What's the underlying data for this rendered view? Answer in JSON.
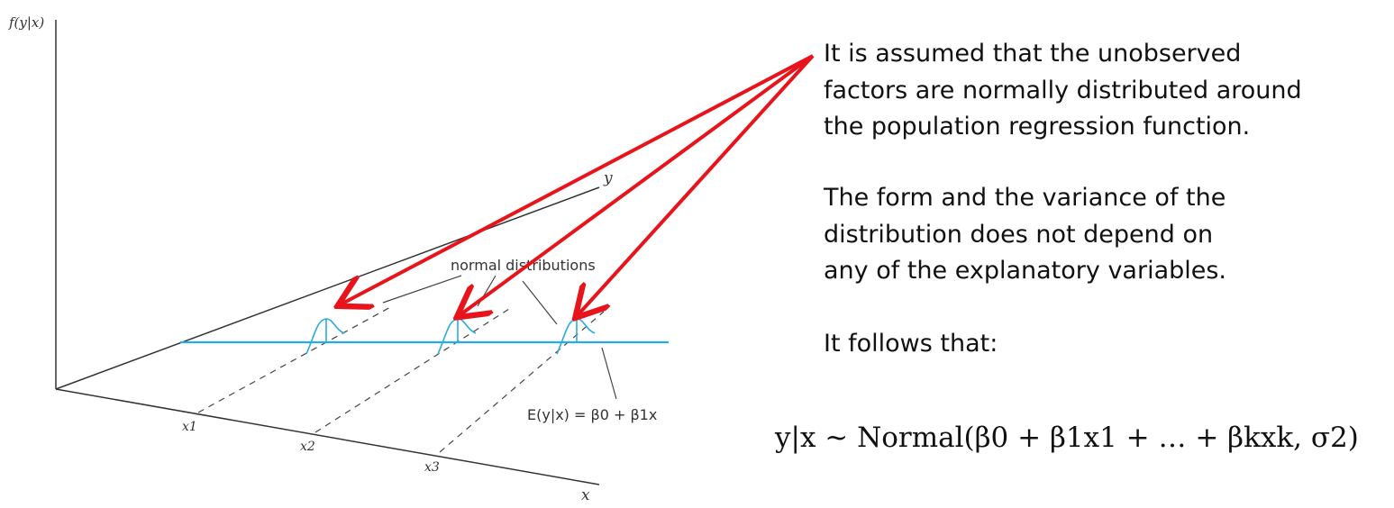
{
  "diagram": {
    "axis_labels": {
      "f_axis": "f(y|x)",
      "y_axis": "y",
      "x_axis": "x"
    },
    "x_ticks": [
      "x1",
      "x2",
      "x3"
    ],
    "callout": "normal distributions",
    "regression_label": "E(y|x) = β0 + β1x",
    "colors": {
      "regression_line": "#29abe2",
      "arrows": "#e8141b",
      "axes": "#333333"
    }
  },
  "notes": {
    "p1": [
      "It is assumed that the unobserved",
      "factors are normally distributed around",
      "the population regression function."
    ],
    "p2": [
      "The form and the variance of the",
      "distribution does not depend on",
      "any of the explanatory variables."
    ],
    "p3": "It follows that:"
  },
  "formula": "y|x ~ Normal(β0 + β1x1 + … + βkxk, σ2)"
}
